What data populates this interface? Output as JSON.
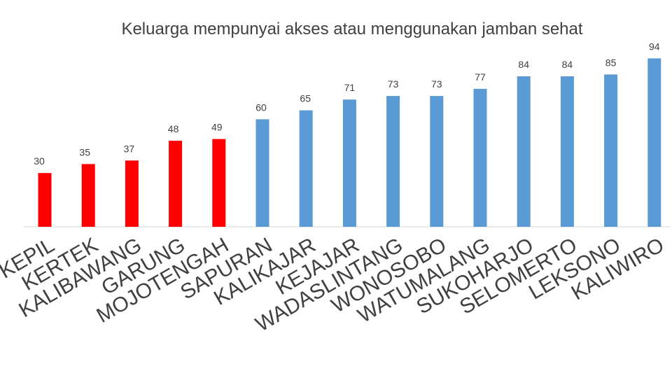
{
  "chart_data": {
    "type": "bar",
    "title": "Keluarga mempunyai akses atau menggunakan jamban sehat",
    "xlabel": "",
    "ylabel": "",
    "ylim": [
      0,
      100
    ],
    "grid": false,
    "legend": "none",
    "categories": [
      "KEPIL",
      "KERTEK",
      "KALIBAWANG",
      "GARUNG",
      "MOJOTENGAH",
      "SAPURAN",
      "KALIKAJAR",
      "KEJAJAR",
      "WADASLINTANG",
      "WONOSOBO",
      "WATUMALANG",
      "SUKOHARJO",
      "SELOMERTO",
      "LEKSONO",
      "KALIWIRO"
    ],
    "values": [
      30,
      35,
      37,
      48,
      49,
      60,
      65,
      71,
      73,
      73,
      77,
      84,
      84,
      85,
      94
    ],
    "value_labels": [
      "30",
      "35",
      "37",
      "48",
      "49",
      "60",
      "65",
      "71",
      "73",
      "73",
      "77",
      "84",
      "84",
      "85",
      "94"
    ],
    "bar_colors": [
      "#ff0000",
      "#ff0000",
      "#ff0000",
      "#ff0000",
      "#ff0000",
      "#5b9bd5",
      "#5b9bd5",
      "#5b9bd5",
      "#5b9bd5",
      "#5b9bd5",
      "#5b9bd5",
      "#5b9bd5",
      "#5b9bd5",
      "#5b9bd5",
      "#5b9bd5"
    ]
  }
}
